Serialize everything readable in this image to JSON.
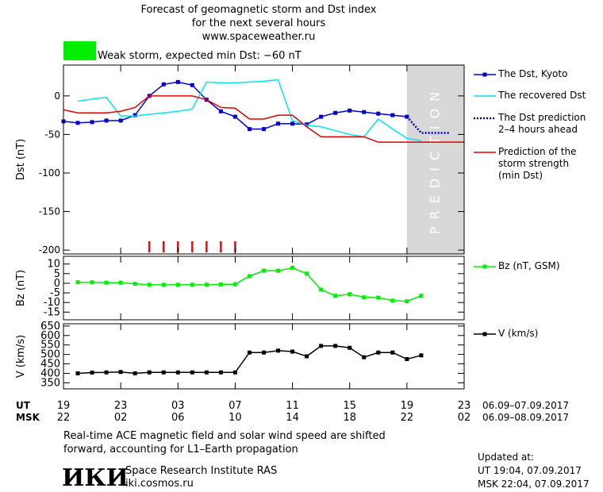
{
  "page": {
    "title": "Forecast of geomagnetic storm and Dst index",
    "subtitle": "for the next several hours",
    "source": "www.spaceweather.ru",
    "storm_label": "Weak storm, expected min Dst: −60 nT",
    "storm_color": "#00ee00",
    "ut_label": "UT",
    "msk_label": "MSK",
    "ut_range": "06.09–07.09.2017",
    "msk_range": "06.09–08.09.2017",
    "note": [
      "Real-time ACE magnetic field and solar wind speed are shifted",
      "forward, accounting for L1–Earth propagation"
    ],
    "logo": "ИКИ",
    "institute": "Space Research Institute RAS",
    "website": "iki.cosmos.ru",
    "updated": [
      "Updated at:",
      "UT   19:04, 07.09.2017",
      "MSK 22:04, 07.09.2017"
    ]
  },
  "chart_data": [
    {
      "type": "line",
      "ylabel": "Dst (nT)",
      "xlim": [
        0,
        28
      ],
      "ylim": [
        -205,
        40
      ],
      "yticks": [
        0,
        -50,
        -100,
        -150,
        -200
      ],
      "prediction_region": {
        "x": [
          24,
          28
        ],
        "label": "PREDICTION",
        "color": "#d8d8d8"
      },
      "storm_hours": [
        6,
        7,
        8,
        9,
        10,
        11,
        12
      ],
      "storm_hours_color": "#ff0000",
      "series": [
        {
          "name": "The Dst, Kyoto",
          "color": "#0000cc",
          "marker": "square",
          "dash": "solid",
          "x": [
            0,
            1,
            2,
            3,
            4,
            5,
            6,
            7,
            8,
            9,
            10,
            11,
            12,
            13,
            14,
            15,
            16,
            17,
            18,
            19,
            20,
            21,
            22,
            23,
            24
          ],
          "values": [
            -33,
            -35,
            -34,
            -32,
            -32,
            -25,
            0,
            15,
            18,
            14,
            -5,
            -20,
            -27,
            -43,
            -43,
            -36,
            -36,
            -37,
            -27,
            -22,
            -19,
            -21,
            -23,
            -25,
            -27
          ]
        },
        {
          "name": "The recovered Dst",
          "color": "#00e5ee",
          "marker": "none",
          "dash": "solid",
          "x": [
            1,
            2,
            3,
            4,
            5,
            6,
            7,
            8,
            9,
            10,
            11,
            12,
            13,
            14,
            15,
            16,
            17,
            18,
            19,
            20,
            21,
            22,
            23,
            24,
            25
          ],
          "values": [
            -7,
            -4,
            -2,
            -26,
            -26,
            -24,
            -22,
            -20,
            -17,
            18,
            17,
            17,
            18,
            19,
            21,
            -32,
            -38,
            -40,
            -45,
            -50,
            -53,
            -30,
            -43,
            -55,
            -58
          ]
        },
        {
          "name": "The Dst prediction\n2–4 hours ahead",
          "color": "#0000cc",
          "marker": "none",
          "dash": "dotted",
          "x": [
            24,
            25,
            27
          ],
          "values": [
            -27,
            -48,
            -48
          ]
        },
        {
          "name": "Prediction of the\nstorm strength\n(min Dst)",
          "color": "#e00000",
          "marker": "none",
          "dash": "solid",
          "x": [
            0,
            1,
            2,
            3,
            4,
            5,
            6,
            7,
            8,
            9,
            10,
            11,
            12,
            13,
            14,
            15,
            16,
            17,
            18,
            19,
            20,
            21,
            22,
            23,
            24,
            25,
            26,
            27,
            28
          ],
          "values": [
            -18,
            -22,
            -22,
            -22,
            -20,
            -15,
            0,
            0,
            0,
            0,
            -5,
            -15,
            -16,
            -30,
            -30,
            -25,
            -25,
            -40,
            -53,
            -53,
            -53,
            -53,
            -60,
            -60,
            -60,
            -60,
            -60,
            -60,
            -60
          ]
        }
      ]
    },
    {
      "type": "line",
      "ylabel": "Bz (nT)",
      "xlim": [
        0,
        28
      ],
      "ylim": [
        -19,
        14
      ],
      "yticks": [
        10,
        5,
        0,
        -5,
        -10,
        -15
      ],
      "series": [
        {
          "name": "Bz (nT, GSM)",
          "color": "#00ee00",
          "marker": "square",
          "dash": "solid",
          "x": [
            1,
            2,
            3,
            4,
            5,
            6,
            7,
            8,
            9,
            10,
            11,
            12,
            13,
            14,
            15,
            16,
            17,
            18,
            19,
            20,
            21,
            22,
            23,
            24,
            25
          ],
          "values": [
            0.5,
            0.5,
            0.3,
            0.3,
            -0.3,
            -0.8,
            -0.8,
            -0.8,
            -0.8,
            -0.8,
            -0.6,
            -0.5,
            3.7,
            6.5,
            6.5,
            8,
            5,
            -3.3,
            -6.5,
            -5.7,
            -7.3,
            -7.5,
            -9,
            -9.4,
            -6.5
          ]
        }
      ]
    },
    {
      "type": "line",
      "ylabel": "V (km/s)",
      "xlim": [
        0,
        28
      ],
      "ylim": [
        318,
        662
      ],
      "yticks": [
        350,
        400,
        450,
        500,
        550,
        600,
        650
      ],
      "xticks": [
        {
          "value": 0,
          "label": "19"
        },
        {
          "value": 4,
          "label": "23"
        },
        {
          "value": 8,
          "label": "03"
        },
        {
          "value": 12,
          "label": "07"
        },
        {
          "value": 16,
          "label": "11"
        },
        {
          "value": 20,
          "label": "15"
        },
        {
          "value": 24,
          "label": "19"
        },
        {
          "value": 28,
          "label": "23"
        }
      ],
      "xticks_msk": [
        {
          "value": 0,
          "label": "22"
        },
        {
          "value": 4,
          "label": "02"
        },
        {
          "value": 8,
          "label": "06"
        },
        {
          "value": 12,
          "label": "10"
        },
        {
          "value": 16,
          "label": "14"
        },
        {
          "value": 20,
          "label": "18"
        },
        {
          "value": 24,
          "label": "22"
        },
        {
          "value": 28,
          "label": "02"
        }
      ],
      "series": [
        {
          "name": "V (km/s)",
          "color": "#000000",
          "marker": "square",
          "dash": "solid",
          "x": [
            1,
            2,
            3,
            4,
            5,
            6,
            7,
            8,
            9,
            10,
            11,
            12,
            13,
            14,
            15,
            16,
            17,
            18,
            19,
            20,
            21,
            22,
            23,
            24,
            25
          ],
          "values": [
            400,
            404,
            405,
            407,
            400,
            405,
            405,
            405,
            405,
            405,
            405,
            405,
            510,
            510,
            520,
            515,
            490,
            545,
            545,
            535,
            485,
            510,
            510,
            475,
            495
          ]
        }
      ]
    }
  ]
}
